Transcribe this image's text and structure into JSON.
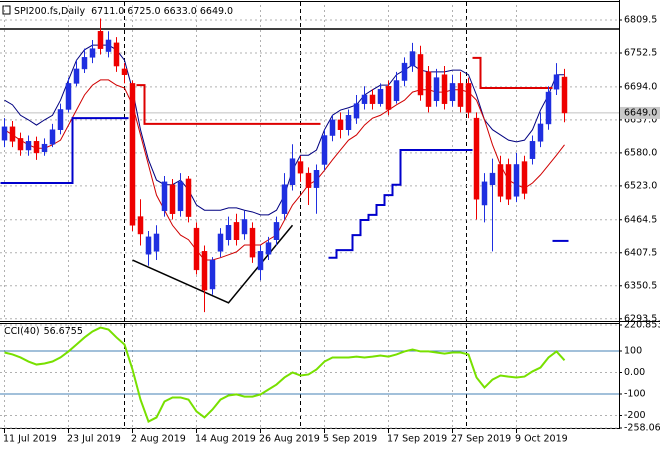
{
  "chart_data": [
    {
      "type": "candlestick",
      "title": "SPI200.fs,Daily",
      "ohlc_label": "6711.0 6725.0 6633.0 6649.0",
      "categories": [
        "11 Jul 2019",
        null,
        null,
        null,
        null,
        null,
        null,
        null,
        "23 Jul 2019",
        null,
        null,
        null,
        null,
        null,
        null,
        null,
        "2 Aug 2019",
        null,
        null,
        null,
        null,
        null,
        null,
        null,
        "14 Aug 2019",
        null,
        null,
        null,
        null,
        null,
        null,
        null,
        "26 Aug 2019",
        null,
        null,
        null,
        null,
        null,
        null,
        null,
        "5 Sep 2019",
        null,
        null,
        null,
        null,
        null,
        null,
        null,
        "17 Sep 2019",
        null,
        null,
        null,
        null,
        null,
        null,
        null,
        "27 Sep 2019",
        null,
        null,
        null,
        null,
        null,
        null,
        null,
        "9 Oct 2019",
        null,
        null,
        null,
        null,
        null,
        null
      ],
      "open": [
        6602,
        6625,
        6605,
        6585,
        6600,
        6582,
        6595,
        6620,
        6655,
        6700,
        6725,
        6745,
        6790,
        6755,
        6770,
        6725,
        6700,
        6470,
        6405,
        6410,
        6480,
        6525,
        6480,
        6535,
        6450,
        6410,
        6345,
        6410,
        6430,
        6460,
        6440,
        6450,
        6378,
        6405,
        6430,
        6475,
        6525,
        6565,
        6545,
        6520,
        6560,
        6610,
        6637,
        6620,
        6640,
        6665,
        6680,
        6665,
        6695,
        6670,
        6705,
        6730,
        6750,
        6720,
        6670,
        6715,
        6670,
        6700,
        6700,
        6640,
        6490,
        6525,
        6560,
        6560,
        6505,
        6565,
        6570,
        6600,
        6630,
        6690,
        6711
      ],
      "high": [
        6640,
        6635,
        6615,
        6610,
        6608,
        6605,
        6630,
        6665,
        6710,
        6740,
        6760,
        6775,
        6812,
        6790,
        6780,
        6735,
        6705,
        6500,
        6445,
        6455,
        6540,
        6535,
        6545,
        6540,
        6460,
        6420,
        6400,
        6450,
        6470,
        6475,
        6480,
        6460,
        6420,
        6435,
        6470,
        6545,
        6595,
        6575,
        6555,
        6560,
        6620,
        6645,
        6650,
        6655,
        6680,
        6695,
        6690,
        6700,
        6705,
        6720,
        6745,
        6770,
        6765,
        6730,
        6725,
        6730,
        6715,
        6720,
        6710,
        6650,
        6545,
        6570,
        6575,
        6570,
        6580,
        6575,
        6610,
        6650,
        6695,
        6735,
        6725
      ],
      "low": [
        6590,
        6590,
        6575,
        6575,
        6568,
        6575,
        6590,
        6612,
        6650,
        6695,
        6718,
        6735,
        6750,
        6745,
        6720,
        6700,
        6445,
        6420,
        6385,
        6395,
        6470,
        6465,
        6470,
        6460,
        6370,
        6305,
        6335,
        6400,
        6420,
        6420,
        6430,
        6390,
        6360,
        6395,
        6420,
        6465,
        6515,
        6530,
        6490,
        6475,
        6550,
        6600,
        6605,
        6610,
        6630,
        6655,
        6655,
        6660,
        6645,
        6665,
        6695,
        6720,
        6670,
        6650,
        6660,
        6655,
        6660,
        6650,
        6640,
        6465,
        6460,
        6410,
        6495,
        6490,
        6495,
        6500,
        6560,
        6590,
        6620,
        6680,
        6633
      ],
      "close": [
        6625,
        6600,
        6585,
        6600,
        6580,
        6595,
        6620,
        6655,
        6700,
        6725,
        6745,
        6760,
        6760,
        6775,
        6730,
        6715,
        6455,
        6440,
        6435,
        6440,
        6530,
        6475,
        6530,
        6470,
        6378,
        6343,
        6395,
        6440,
        6455,
        6430,
        6465,
        6400,
        6410,
        6425,
        6460,
        6525,
        6570,
        6545,
        6520,
        6550,
        6610,
        6637,
        6620,
        6645,
        6665,
        6680,
        6665,
        6690,
        6655,
        6705,
        6735,
        6755,
        6680,
        6660,
        6710,
        6665,
        6700,
        6660,
        6650,
        6500,
        6530,
        6545,
        6505,
        6500,
        6560,
        6510,
        6600,
        6630,
        6685,
        6715,
        6649
      ],
      "up_color": "#1f2fe0",
      "down_color": "#ee0000",
      "overlays": [
        {
          "style": "line",
          "color": "#000080",
          "width": 1,
          "values": [
            6671,
            6663,
            6645,
            6637,
            6628,
            6637,
            6645,
            6671,
            6706,
            6740,
            6758,
            6766,
            6766,
            6766,
            6758,
            6740,
            6689,
            6620,
            6568,
            6533,
            6525,
            6525,
            6533,
            6516,
            6490,
            6481,
            6481,
            6481,
            6485,
            6485,
            6481,
            6478,
            6473,
            6473,
            6481,
            6507,
            6550,
            6576,
            6576,
            6585,
            6620,
            6645,
            6654,
            6658,
            6663,
            6680,
            6689,
            6697,
            6697,
            6715,
            6723,
            6732,
            6723,
            6720,
            6720,
            6720,
            6723,
            6723,
            6715,
            6680,
            6637,
            6620,
            6611,
            6602,
            6599,
            6602,
            6620,
            6654,
            6680,
            6715,
            6715
          ]
        },
        {
          "style": "line",
          "color": "#d00000",
          "width": 1,
          "values": [
            6620,
            6611,
            6602,
            6594,
            6588,
            6588,
            6594,
            6602,
            6628,
            6654,
            6680,
            6697,
            6706,
            6706,
            6697,
            6692,
            6663,
            6611,
            6559,
            6507,
            6481,
            6455,
            6438,
            6430,
            6412,
            6395,
            6395,
            6399,
            6404,
            6409,
            6421,
            6421,
            6421,
            6430,
            6438,
            6464,
            6490,
            6507,
            6525,
            6533,
            6550,
            6568,
            6585,
            6602,
            6611,
            6628,
            6640,
            6645,
            6654,
            6663,
            6671,
            6685,
            6689,
            6689,
            6685,
            6685,
            6689,
            6689,
            6685,
            6671,
            6637,
            6594,
            6559,
            6533,
            6525,
            6519,
            6528,
            6542,
            6559,
            6576,
            6594
          ]
        },
        {
          "style": "step",
          "color": "#0000cc",
          "width": 2,
          "values": [
            6528,
            6528,
            6528,
            6528,
            6528,
            6528,
            6528,
            6528,
            6528,
            6640,
            6640,
            6640,
            6640,
            6640,
            6640,
            6640,
            null,
            null,
            null,
            null,
            null,
            null,
            null,
            null,
            null,
            null,
            null,
            null,
            null,
            null,
            null,
            null,
            null,
            null,
            null,
            null,
            null,
            null,
            null,
            null,
            null,
            6399,
            6412,
            6412,
            6438,
            6464,
            6473,
            6490,
            6507,
            6525,
            6585,
            6585,
            6585,
            6585,
            6585,
            6585,
            6585,
            6585,
            6585,
            null,
            null,
            null,
            null,
            null,
            null,
            null,
            null,
            null,
            null,
            6428,
            6428
          ]
        },
        {
          "style": "step",
          "color": "#dd0000",
          "width": 2,
          "values": [
            null,
            null,
            null,
            null,
            null,
            null,
            null,
            null,
            null,
            null,
            null,
            null,
            null,
            null,
            null,
            null,
            null,
            6697,
            6630,
            6630,
            6630,
            6630,
            6630,
            6630,
            6630,
            6630,
            6630,
            6630,
            6630,
            6630,
            6630,
            6630,
            6630,
            6630,
            6630,
            6630,
            6630,
            6630,
            6630,
            6630,
            null,
            null,
            null,
            null,
            null,
            null,
            null,
            null,
            null,
            null,
            null,
            null,
            null,
            null,
            null,
            null,
            null,
            null,
            null,
            6744,
            6692,
            6692,
            6692,
            6692,
            6692,
            6692,
            6692,
            6692,
            6692,
            null,
            null
          ]
        }
      ],
      "hlines": [
        {
          "value": 6794,
          "color": "#000000"
        }
      ],
      "trendline": {
        "x": [
          16,
          28,
          36
        ],
        "values": [
          6395,
          6321,
          6455
        ],
        "color": "#000000"
      },
      "last_price": {
        "value": 6649,
        "label": "6649.0"
      },
      "ylim": [
        6291.4,
        6835.4
      ],
      "yticks": [
        6809.5,
        6752.5,
        {
          "value": 6694,
          "label": "6694.0"
        },
        {
          "value": 6637,
          "label": "6637.0"
        },
        {
          "value": 6580,
          "label": "6580.0"
        },
        {
          "value": 6523,
          "label": "6523.0"
        },
        6464.5,
        6407.5,
        6350.5,
        6293.5
      ],
      "grid": true
    },
    {
      "type": "line",
      "title": "CCI(40)",
      "last_label": "56.6755",
      "color": "#78e000",
      "values": [
        93,
        84,
        70,
        51,
        37,
        42,
        51,
        70,
        98,
        130,
        163,
        191,
        209,
        200,
        163,
        130,
        14,
        -126,
        -228,
        -209,
        -135,
        -116,
        -116,
        -126,
        -181,
        -209,
        -172,
        -126,
        -107,
        -102,
        -112,
        -112,
        -102,
        -79,
        -56,
        -23,
        0,
        -14,
        -9,
        14,
        51,
        70,
        70,
        70,
        74,
        70,
        74,
        79,
        74,
        84,
        98,
        107,
        98,
        98,
        93,
        88,
        93,
        93,
        84,
        -23,
        -70,
        -33,
        -14,
        -19,
        -23,
        -19,
        5,
        23,
        70,
        98,
        56.6755
      ],
      "levels": [
        100,
        -100
      ],
      "level_color": "#4682b4",
      "ylim": [
        -258.0615,
        220.8537
      ],
      "yticks": [
        220.8537,
        100,
        {
          "value": 0,
          "label": "0.00"
        },
        -100,
        -200,
        -258.0615
      ],
      "grid": true
    }
  ]
}
